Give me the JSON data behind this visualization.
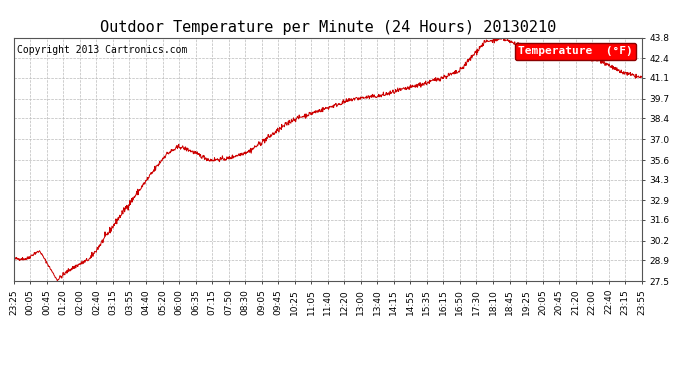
{
  "title": "Outdoor Temperature per Minute (24 Hours) 20130210",
  "copyright": "Copyright 2013 Cartronics.com",
  "legend_label": "Temperature  (°F)",
  "line_color": "#cc0000",
  "background_color": "#ffffff",
  "grid_color": "#bbbbbb",
  "ylim": [
    27.5,
    43.8
  ],
  "yticks": [
    27.5,
    28.9,
    30.2,
    31.6,
    32.9,
    34.3,
    35.6,
    37.0,
    38.4,
    39.7,
    41.1,
    42.4,
    43.8
  ],
  "title_fontsize": 11,
  "axis_fontsize": 6.5,
  "copyright_fontsize": 7,
  "legend_fontsize": 8,
  "xtick_labels": [
    "23:25",
    "00:05",
    "00:45",
    "01:20",
    "02:00",
    "02:40",
    "03:15",
    "03:55",
    "04:40",
    "05:20",
    "06:00",
    "06:35",
    "07:15",
    "07:50",
    "08:30",
    "09:05",
    "09:45",
    "10:25",
    "11:05",
    "11:40",
    "12:20",
    "13:00",
    "13:40",
    "14:15",
    "14:55",
    "15:35",
    "16:15",
    "16:50",
    "17:30",
    "18:10",
    "18:45",
    "19:25",
    "20:05",
    "20:45",
    "21:20",
    "22:00",
    "22:40",
    "23:15",
    "23:55"
  ]
}
